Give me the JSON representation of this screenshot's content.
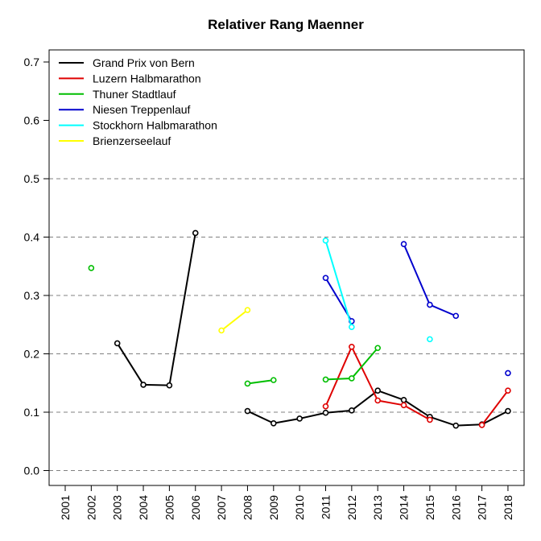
{
  "chart_data": {
    "type": "line",
    "title": "Relativer Rang Maenner",
    "xlabel": "",
    "ylabel": "",
    "x": [
      "2001",
      "2002",
      "2003",
      "2004",
      "2005",
      "2006",
      "2007",
      "2008",
      "2009",
      "2010",
      "2011",
      "2012",
      "2013",
      "2014",
      "2015",
      "2016",
      "2017",
      "2018"
    ],
    "ylim": [
      -0.02,
      0.73
    ],
    "yticks": [
      "0.0",
      "0.1",
      "0.2",
      "0.3",
      "0.4",
      "0.5",
      "0.6",
      "0.7"
    ],
    "grid": "dashed horizontal at 0.0, 0.1, 0.2, 0.3, 0.4, 0.5",
    "legend_position": "top-left",
    "series": [
      {
        "name": "Grand Prix von Bern",
        "color": "#000000",
        "values": [
          null,
          null,
          0.218,
          0.147,
          0.146,
          0.407,
          null,
          0.102,
          0.081,
          0.089,
          0.099,
          0.103,
          0.137,
          0.121,
          0.092,
          0.077,
          0.079,
          0.102
        ]
      },
      {
        "name": "Luzern Halbmarathon",
        "color": "#DF0000",
        "values": [
          null,
          null,
          null,
          null,
          null,
          null,
          null,
          null,
          null,
          null,
          0.11,
          0.212,
          0.12,
          0.112,
          0.087,
          null,
          0.078,
          0.137
        ]
      },
      {
        "name": "Thuner Stadtlauf",
        "color": "#00BE00",
        "values": [
          null,
          0.347,
          null,
          null,
          null,
          null,
          null,
          0.149,
          0.155,
          null,
          0.156,
          0.158,
          0.21,
          null,
          null,
          null,
          null,
          null
        ]
      },
      {
        "name": "Niesen Treppenlauf",
        "color": "#0000CD",
        "values": [
          null,
          null,
          null,
          null,
          null,
          null,
          null,
          null,
          null,
          null,
          0.33,
          0.256,
          null,
          0.388,
          0.284,
          0.265,
          null,
          0.167
        ]
      },
      {
        "name": "Stockhorn Halbmarathon",
        "color": "#00FFFF",
        "values": [
          null,
          null,
          null,
          null,
          null,
          null,
          null,
          null,
          null,
          null,
          0.394,
          0.246,
          null,
          null,
          0.225,
          null,
          null,
          null
        ]
      },
      {
        "name": "Brienzerseelauf",
        "color": "#FFFF00",
        "values": [
          null,
          null,
          null,
          null,
          null,
          null,
          0.24,
          0.275,
          null,
          null,
          null,
          null,
          null,
          null,
          null,
          null,
          null,
          null
        ]
      }
    ]
  }
}
